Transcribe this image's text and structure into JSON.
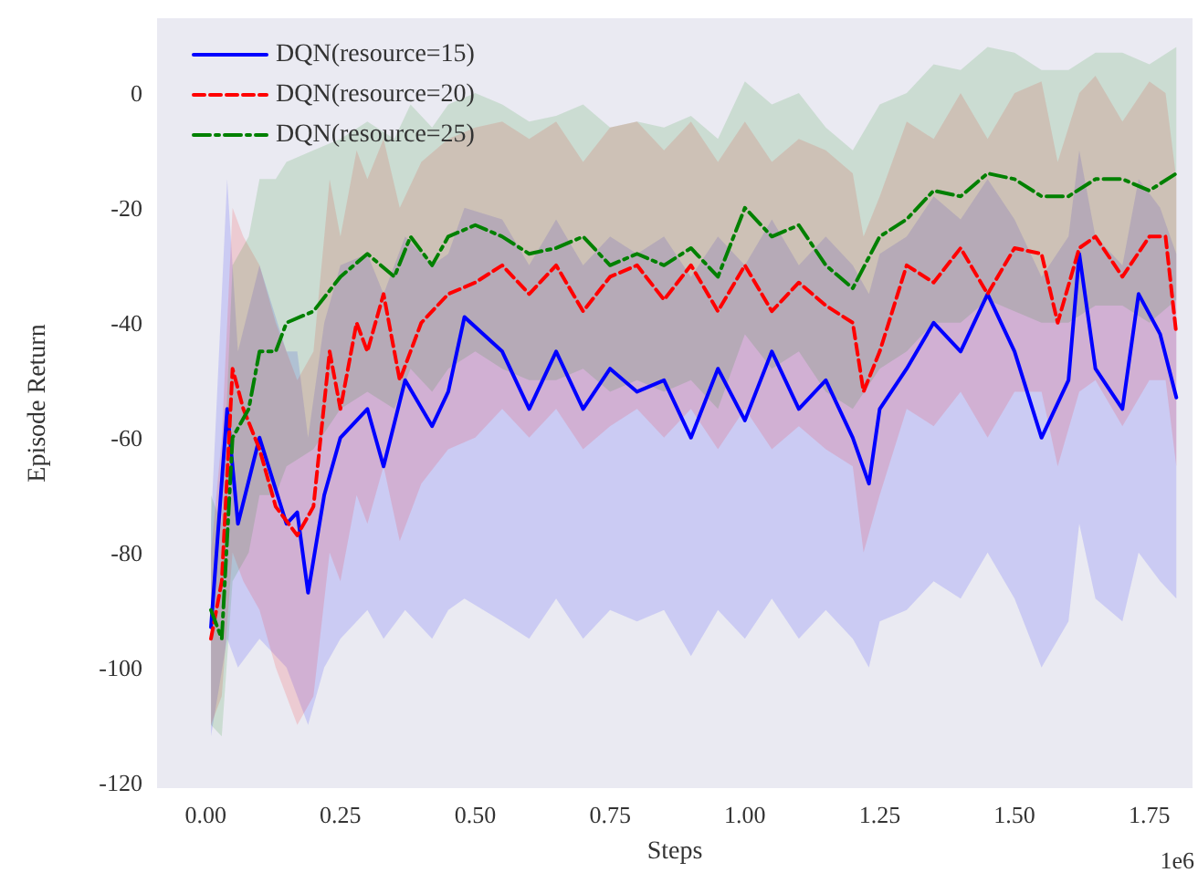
{
  "chart_data": {
    "type": "line",
    "xlabel": "Steps",
    "ylabel": "Episode Return",
    "annotations": [
      "1e6"
    ],
    "xlim": [
      -0.09,
      1.83
    ],
    "ylim": [
      -121,
      13
    ],
    "xticks": [
      {
        "value": 0,
        "label": "0.00"
      },
      {
        "value": 0.25,
        "label": "0.25"
      },
      {
        "value": 0.5,
        "label": "0.50"
      },
      {
        "value": 0.75,
        "label": "0.75"
      },
      {
        "value": 1,
        "label": "1.00"
      },
      {
        "value": 1.25,
        "label": "1.25"
      },
      {
        "value": 1.5,
        "label": "1.50"
      },
      {
        "value": 1.75,
        "label": "1.75"
      }
    ],
    "yticks": [
      -120,
      -100,
      -80,
      -60,
      -40,
      -20,
      0
    ],
    "grid": false,
    "legend": "top left",
    "marker": "none",
    "series": [
      {
        "name": "DQN(resource=15)",
        "color": "#0000ff",
        "line_style": "solid",
        "x": [
          0.01,
          0.04,
          0.06,
          0.1,
          0.15,
          0.17,
          0.19,
          0.22,
          0.25,
          0.3,
          0.33,
          0.37,
          0.42,
          0.45,
          0.48,
          0.55,
          0.6,
          0.65,
          0.7,
          0.75,
          0.8,
          0.85,
          0.9,
          0.95,
          1.0,
          1.05,
          1.1,
          1.15,
          1.2,
          1.23,
          1.25,
          1.3,
          1.35,
          1.4,
          1.45,
          1.5,
          1.55,
          1.6,
          1.62,
          1.65,
          1.7,
          1.73,
          1.77,
          1.8
        ],
        "values": [
          -93,
          -55,
          -75,
          -60,
          -75,
          -73,
          -87,
          -70,
          -60,
          -55,
          -65,
          -50,
          -58,
          -52,
          -39,
          -45,
          -55,
          -45,
          -55,
          -48,
          -52,
          -50,
          -60,
          -48,
          -57,
          -45,
          -55,
          -50,
          -60,
          -68,
          -55,
          -48,
          -40,
          -45,
          -35,
          -45,
          -60,
          -50,
          -28,
          -48,
          -55,
          -35,
          -42,
          -53
        ],
        "lower": [
          -112,
          -95,
          -100,
          -95,
          -100,
          -105,
          -110,
          -100,
          -95,
          -90,
          -95,
          -90,
          -95,
          -90,
          -88,
          -92,
          -95,
          -88,
          -95,
          -90,
          -92,
          -90,
          -98,
          -90,
          -95,
          -88,
          -95,
          -90,
          -95,
          -100,
          -92,
          -90,
          -85,
          -88,
          -80,
          -88,
          -100,
          -92,
          -75,
          -88,
          -92,
          -80,
          -85,
          -88
        ],
        "upper": [
          -75,
          -15,
          -45,
          -30,
          -45,
          -45,
          -60,
          -40,
          -30,
          -28,
          -35,
          -25,
          -30,
          -28,
          -20,
          -22,
          -30,
          -22,
          -30,
          -25,
          -28,
          -25,
          -32,
          -25,
          -30,
          -22,
          -30,
          -25,
          -30,
          -35,
          -28,
          -25,
          -18,
          -22,
          -15,
          -22,
          -32,
          -25,
          -10,
          -25,
          -30,
          -15,
          -20,
          -28
        ]
      },
      {
        "name": "DQN(resource=20)",
        "color": "#ff0000",
        "line_style": "dashed",
        "x": [
          0.01,
          0.03,
          0.05,
          0.07,
          0.1,
          0.13,
          0.17,
          0.2,
          0.23,
          0.25,
          0.28,
          0.3,
          0.33,
          0.36,
          0.4,
          0.45,
          0.5,
          0.55,
          0.6,
          0.65,
          0.7,
          0.75,
          0.8,
          0.85,
          0.9,
          0.95,
          1.0,
          1.05,
          1.1,
          1.15,
          1.2,
          1.22,
          1.25,
          1.3,
          1.35,
          1.4,
          1.45,
          1.5,
          1.55,
          1.58,
          1.62,
          1.65,
          1.7,
          1.75,
          1.78,
          1.8
        ],
        "values": [
          -95,
          -85,
          -48,
          -55,
          -62,
          -72,
          -77,
          -72,
          -45,
          -55,
          -40,
          -45,
          -35,
          -50,
          -40,
          -35,
          -33,
          -30,
          -35,
          -30,
          -38,
          -32,
          -30,
          -36,
          -30,
          -38,
          -30,
          -38,
          -33,
          -37,
          -40,
          -52,
          -45,
          -30,
          -33,
          -27,
          -35,
          -27,
          -28,
          -40,
          -27,
          -25,
          -32,
          -25,
          -25,
          -42
        ],
        "lower": [
          -110,
          -105,
          -80,
          -85,
          -90,
          -100,
          -110,
          -105,
          -80,
          -85,
          -70,
          -75,
          -65,
          -78,
          -68,
          -62,
          -60,
          -55,
          -60,
          -55,
          -62,
          -58,
          -55,
          -60,
          -55,
          -62,
          -55,
          -62,
          -58,
          -62,
          -65,
          -80,
          -70,
          -55,
          -58,
          -52,
          -60,
          -52,
          -52,
          -65,
          -52,
          -50,
          -58,
          -50,
          -50,
          -65
        ],
        "upper": [
          -80,
          -60,
          -20,
          -25,
          -30,
          -40,
          -50,
          -45,
          -15,
          -25,
          -10,
          -15,
          -8,
          -20,
          -12,
          -8,
          -6,
          -5,
          -8,
          -5,
          -12,
          -6,
          -5,
          -10,
          -5,
          -12,
          -5,
          -12,
          -8,
          -10,
          -14,
          -25,
          -18,
          -5,
          -8,
          0,
          -8,
          0,
          2,
          -12,
          0,
          3,
          -5,
          2,
          0,
          -15
        ]
      },
      {
        "name": "DQN(resource=25)",
        "color": "#008000",
        "line_style": "dashdot",
        "x": [
          0.01,
          0.03,
          0.05,
          0.08,
          0.1,
          0.13,
          0.15,
          0.2,
          0.25,
          0.3,
          0.35,
          0.38,
          0.42,
          0.45,
          0.5,
          0.55,
          0.6,
          0.65,
          0.7,
          0.75,
          0.8,
          0.85,
          0.9,
          0.95,
          1.0,
          1.05,
          1.1,
          1.15,
          1.2,
          1.25,
          1.3,
          1.35,
          1.4,
          1.45,
          1.5,
          1.55,
          1.6,
          1.65,
          1.7,
          1.75,
          1.8
        ],
        "values": [
          -90,
          -95,
          -60,
          -55,
          -45,
          -45,
          -40,
          -38,
          -32,
          -28,
          -32,
          -25,
          -30,
          -25,
          -23,
          -25,
          -28,
          -27,
          -25,
          -30,
          -28,
          -30,
          -27,
          -32,
          -20,
          -25,
          -23,
          -30,
          -34,
          -25,
          -22,
          -17,
          -18,
          -14,
          -15,
          -18,
          -18,
          -15,
          -15,
          -17,
          -14
        ],
        "lower": [
          -110,
          -112,
          -85,
          -80,
          -70,
          -70,
          -65,
          -62,
          -55,
          -52,
          -55,
          -48,
          -52,
          -48,
          -45,
          -48,
          -50,
          -50,
          -48,
          -52,
          -50,
          -52,
          -50,
          -55,
          -42,
          -48,
          -45,
          -52,
          -55,
          -48,
          -45,
          -40,
          -40,
          -36,
          -38,
          -40,
          -40,
          -37,
          -37,
          -40,
          -36
        ],
        "upper": [
          -70,
          -75,
          -30,
          -25,
          -15,
          -15,
          -12,
          -10,
          -8,
          -5,
          -8,
          -2,
          -6,
          -2,
          0,
          -2,
          -5,
          -4,
          -2,
          -6,
          -5,
          -6,
          -4,
          -8,
          2,
          -2,
          0,
          -6,
          -10,
          -2,
          0,
          5,
          4,
          8,
          7,
          4,
          4,
          7,
          7,
          5,
          8
        ]
      }
    ]
  }
}
